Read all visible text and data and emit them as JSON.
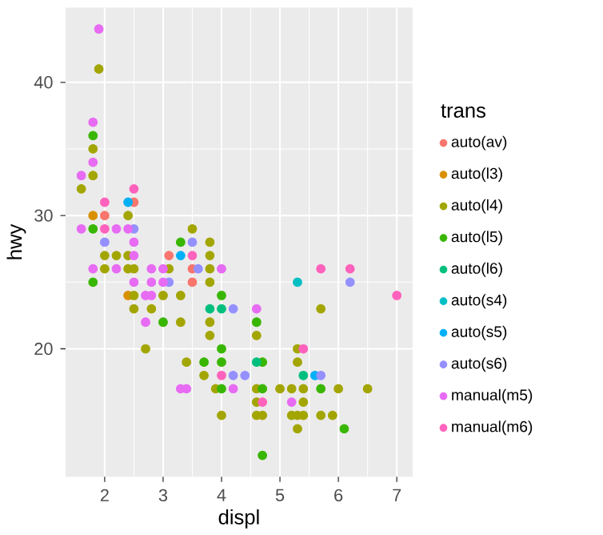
{
  "chart_data": {
    "type": "scatter",
    "xlabel": "displ",
    "ylabel": "hwy",
    "legend_title": "trans",
    "xlim": [
      1.33,
      7.27
    ],
    "ylim": [
      10.4,
      45.6
    ],
    "xticks": [
      2,
      3,
      4,
      5,
      6,
      7
    ],
    "yticks": [
      20,
      30,
      40
    ],
    "grid": true,
    "legend": "right",
    "series": [
      {
        "name": "auto(av)",
        "color": "#F8766D",
        "x": [
          2.0,
          2.5,
          3.1,
          3.5,
          3.5
        ],
        "values": [
          30,
          31,
          27,
          26,
          25
        ]
      },
      {
        "name": "auto(l3)",
        "color": "#D89000",
        "x": [
          1.8,
          2.4
        ],
        "values": [
          30,
          24
        ]
      },
      {
        "name": "auto(l4)",
        "color": "#A3A500",
        "x": [
          1.9,
          1.8,
          1.8,
          1.6,
          2.4,
          2.0,
          2.2,
          2.4,
          3.5,
          3.8,
          3.8,
          2.0,
          2.4,
          2.5,
          3.1,
          3.8,
          3.8,
          2.5,
          3.0,
          3.3,
          2.5,
          2.8,
          5.7,
          3.3,
          3.8,
          3.8,
          4.6,
          2.7,
          5.3,
          3.4,
          5.3,
          3.7,
          3.9,
          4.6,
          5.0,
          5.2,
          5.4,
          6.0,
          6.5,
          4.6,
          5.4,
          4.0,
          4.6,
          4.7,
          5.2,
          5.3,
          5.4,
          5.7,
          5.9,
          5.3
        ],
        "values": [
          41,
          35,
          33,
          32,
          30,
          27,
          27,
          27,
          29,
          28,
          27,
          26,
          26,
          26,
          26,
          26,
          25,
          24,
          24,
          24,
          23,
          23,
          23,
          22,
          22,
          21,
          21,
          20,
          20,
          19,
          19,
          18,
          17,
          17,
          17,
          17,
          17,
          17,
          17,
          16,
          16,
          15,
          15,
          15,
          15,
          15,
          15,
          15,
          15,
          14
        ]
      },
      {
        "name": "auto(l5)",
        "color": "#39B600",
        "x": [
          1.8,
          1.8,
          3.3,
          1.8,
          4.0,
          3.0,
          4.6,
          4.0,
          3.7,
          4.0,
          4.7,
          4.0,
          4.7,
          5.7,
          6.1,
          4.7
        ],
        "values": [
          36,
          29,
          28,
          25,
          24,
          22,
          22,
          20,
          19,
          19,
          19,
          17,
          17,
          17,
          14,
          12
        ]
      },
      {
        "name": "auto(l6)",
        "color": "#00BF7D",
        "x": [
          3.8,
          4.0,
          4.6,
          5.4
        ],
        "values": [
          23,
          23,
          19,
          18
        ]
      },
      {
        "name": "auto(s4)",
        "color": "#00BFC4",
        "x": [
          5.3
        ],
        "values": [
          25
        ]
      },
      {
        "name": "auto(s5)",
        "color": "#00B0F6",
        "x": [
          2.4,
          3.3,
          5.6
        ],
        "values": [
          31,
          27,
          18
        ]
      },
      {
        "name": "auto(s6)",
        "color": "#9590FF",
        "x": [
          2.0,
          2.5,
          3.5,
          3.1,
          3.6,
          6.2,
          4.2,
          4.2,
          4.4,
          5.7
        ],
        "values": [
          28,
          29,
          28,
          25,
          26,
          25,
          23,
          18,
          18,
          18
        ]
      },
      {
        "name": "manual(m5)",
        "color": "#E76BF3",
        "x": [
          1.9,
          1.8,
          1.8,
          1.6,
          1.6,
          2.2,
          2.4,
          2.5,
          2.5,
          1.8,
          2.2,
          2.8,
          4.0,
          3.0,
          2.5,
          2.8,
          3.0,
          2.7,
          2.8,
          4.6,
          2.7,
          3.3,
          3.4,
          4.2,
          5.2
        ],
        "values": [
          44,
          37,
          34,
          33,
          29,
          29,
          29,
          28,
          27,
          26,
          26,
          26,
          26,
          26,
          25,
          25,
          25,
          24,
          24,
          23,
          22,
          17,
          17,
          17,
          16
        ]
      },
      {
        "name": "manual(m6)",
        "color": "#FF62BC",
        "x": [
          2.0,
          2.0,
          2.5,
          3.5,
          5.7,
          6.2,
          7.0,
          5.4,
          4.0,
          4.7
        ],
        "values": [
          31,
          29,
          32,
          27,
          26,
          26,
          24,
          20,
          18,
          16
        ]
      }
    ]
  }
}
